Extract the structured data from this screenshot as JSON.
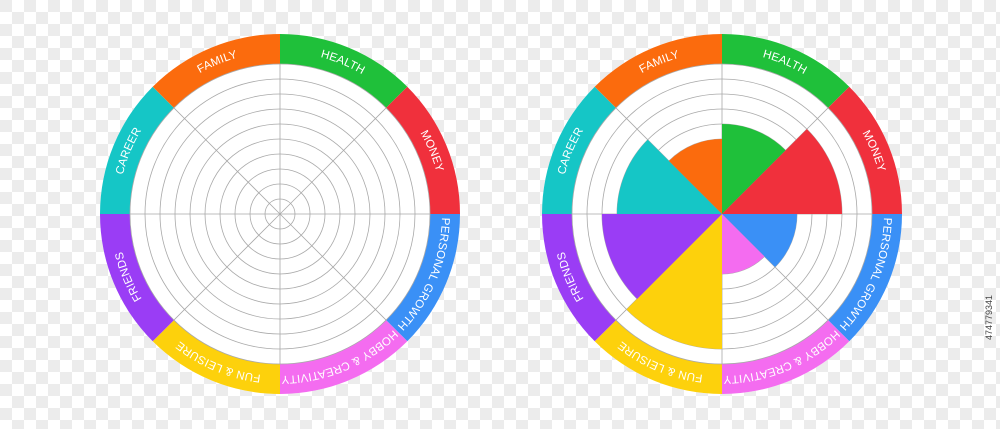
{
  "chart_data": [
    {
      "type": "wheel",
      "categories": [
        "HEALTH",
        "MONEY",
        "PERSONAL GROWTH",
        "HOBBY & CREATIVITY",
        "FUN & LEISURE",
        "FRIENDS",
        "CAREER",
        "FAMILY"
      ],
      "colors": [
        "#1fc03a",
        "#f0303c",
        "#3a90f6",
        "#f46cf0",
        "#fdd10c",
        "#9a3df5",
        "#15c6c6",
        "#fb6b0d"
      ],
      "rlim": [
        0,
        10
      ],
      "rticks": [
        1,
        2,
        3,
        4,
        5,
        6,
        7,
        8,
        9,
        10
      ],
      "grid": true
    },
    {
      "type": "wheel",
      "categories": [
        "HEALTH",
        "MONEY",
        "PERSONAL GROWTH",
        "HOBBY & CREATIVITY",
        "FUN & LEISURE",
        "FRIENDS",
        "CAREER",
        "FAMILY"
      ],
      "colors": [
        "#1fc03a",
        "#f0303c",
        "#3a90f6",
        "#f46cf0",
        "#fdd10c",
        "#9a3df5",
        "#15c6c6",
        "#fb6b0d"
      ],
      "values": [
        6,
        8,
        5,
        4,
        9,
        8,
        7,
        5
      ],
      "rlim": [
        0,
        10
      ],
      "rticks": [
        1,
        2,
        3,
        4,
        5,
        6,
        7,
        8,
        9,
        10
      ],
      "grid": true
    }
  ],
  "stock_id": "474779341"
}
